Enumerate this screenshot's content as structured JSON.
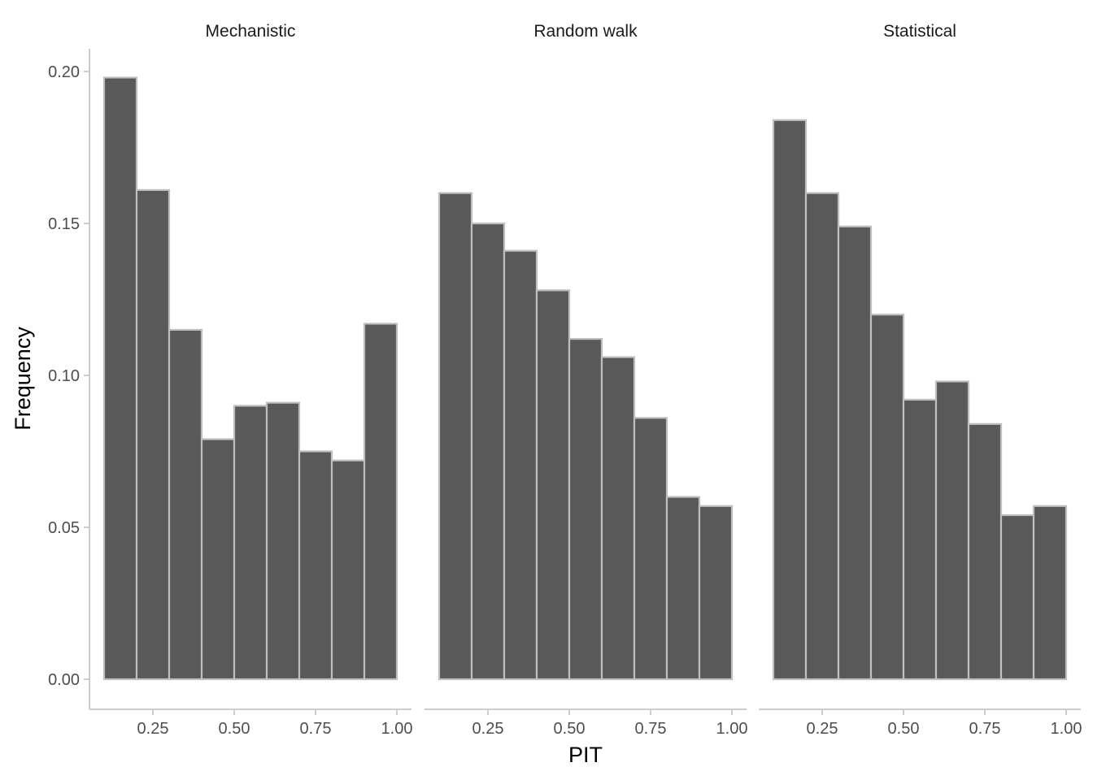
{
  "chart_data": {
    "type": "bar",
    "subtype": "faceted-histogram",
    "xlabel": "PIT",
    "ylabel": "Frequency",
    "xlim": [
      0.1,
      1.0
    ],
    "ylim": [
      0,
      0.2
    ],
    "bin_width": 0.1,
    "x_ticks": [
      0.25,
      0.5,
      0.75,
      1.0
    ],
    "x_tick_labels": [
      "0.25",
      "0.50",
      "0.75",
      "1.00"
    ],
    "y_ticks": [
      0,
      0.05,
      0.1,
      0.15,
      0.2
    ],
    "y_tick_labels": [
      "0.00",
      "0.05",
      "0.10",
      "0.15",
      "0.20"
    ],
    "grid": false,
    "bar_fill": "#595959",
    "bar_outline": "#bfbfbf",
    "axis_color": "#cccccc",
    "bin_starts": [
      0.1,
      0.2,
      0.3,
      0.4,
      0.5,
      0.6,
      0.7,
      0.8,
      0.9
    ],
    "facets": [
      {
        "title": "Mechanistic",
        "values": [
          0.198,
          0.161,
          0.115,
          0.079,
          0.09,
          0.091,
          0.075,
          0.072,
          0.117
        ]
      },
      {
        "title": "Random walk",
        "values": [
          0.16,
          0.15,
          0.141,
          0.128,
          0.112,
          0.106,
          0.086,
          0.06,
          0.057
        ]
      },
      {
        "title": "Statistical",
        "values": [
          0.184,
          0.16,
          0.149,
          0.12,
          0.092,
          0.098,
          0.084,
          0.054,
          0.057
        ]
      }
    ]
  }
}
